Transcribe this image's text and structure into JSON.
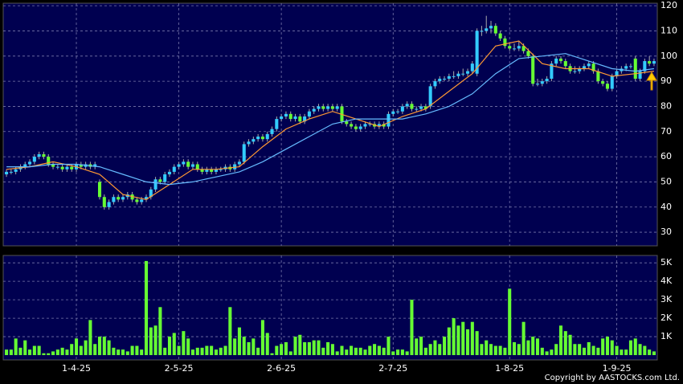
{
  "chart_data": {
    "type": "candlestick",
    "up_color": "#33ccff",
    "down_color": "#66ff33",
    "open": [
      53,
      54,
      54,
      55,
      56,
      57,
      58,
      60,
      61,
      60,
      57,
      56,
      56,
      55,
      56,
      55,
      57,
      56,
      57,
      56,
      50,
      44,
      40,
      42,
      44,
      43,
      44,
      45,
      43,
      42,
      43,
      44,
      47,
      51,
      50,
      53,
      54,
      56,
      57,
      58,
      56,
      57,
      55,
      54,
      55,
      54,
      55,
      55,
      56,
      55,
      57,
      58,
      65,
      66,
      67,
      68,
      67,
      69,
      71,
      75,
      76,
      77,
      75,
      76,
      74,
      76,
      78,
      79,
      80,
      79,
      80,
      79,
      80,
      74,
      73,
      72,
      71,
      72,
      73,
      73,
      72,
      73,
      72,
      77,
      78,
      78,
      80,
      81,
      79,
      79,
      80,
      80,
      88,
      90,
      91,
      91,
      92,
      92,
      93,
      93,
      94,
      93,
      110,
      110,
      111,
      112,
      109,
      107,
      104,
      103,
      103,
      104,
      102,
      100,
      89,
      89,
      90,
      91,
      97,
      99,
      98,
      96,
      94,
      94,
      95,
      96,
      97,
      94,
      90,
      89,
      87,
      92,
      94,
      95,
      96,
      99,
      91,
      94,
      98,
      97
    ],
    "high": [
      55,
      55,
      56,
      57,
      58,
      59,
      61,
      62,
      62,
      61,
      58,
      57,
      57,
      57,
      57,
      58,
      58,
      58,
      58,
      58,
      51,
      45,
      43,
      45,
      45,
      45,
      46,
      46,
      44,
      44,
      45,
      48,
      52,
      52,
      54,
      55,
      57,
      58,
      59,
      59,
      58,
      58,
      56,
      56,
      56,
      56,
      56,
      57,
      57,
      58,
      59,
      66,
      67,
      68,
      69,
      69,
      70,
      72,
      76,
      77,
      78,
      78,
      77,
      77,
      77,
      79,
      80,
      81,
      81,
      81,
      81,
      81,
      81,
      75,
      74,
      73,
      73,
      74,
      74,
      74,
      74,
      74,
      78,
      79,
      79,
      81,
      82,
      82,
      80,
      81,
      81,
      89,
      91,
      92,
      92,
      93,
      94,
      94,
      95,
      95,
      98,
      111,
      112,
      116,
      114,
      113,
      110,
      108,
      105,
      105,
      106,
      105,
      103,
      101,
      91,
      91,
      92,
      98,
      100,
      100,
      99,
      97,
      96,
      96,
      97,
      98,
      98,
      95,
      91,
      90,
      93,
      95,
      96,
      97,
      97,
      100,
      95,
      99,
      100,
      99
    ],
    "low": [
      52,
      53,
      53,
      54,
      55,
      56,
      57,
      59,
      59,
      56,
      55,
      55,
      54,
      54,
      54,
      54,
      55,
      55,
      55,
      55,
      43,
      39,
      39,
      41,
      42,
      42,
      43,
      42,
      41,
      41,
      42,
      43,
      46,
      49,
      49,
      52,
      53,
      55,
      56,
      55,
      55,
      54,
      53,
      53,
      53,
      53,
      54,
      54,
      54,
      54,
      56,
      57,
      64,
      65,
      66,
      66,
      66,
      68,
      70,
      74,
      75,
      74,
      74,
      73,
      73,
      75,
      77,
      78,
      78,
      78,
      78,
      78,
      73,
      72,
      71,
      70,
      70,
      71,
      72,
      71,
      71,
      71,
      71,
      76,
      77,
      77,
      79,
      78,
      78,
      78,
      78,
      79,
      87,
      89,
      90,
      90,
      91,
      91,
      92,
      92,
      93,
      92,
      108,
      109,
      109,
      108,
      106,
      103,
      102,
      102,
      102,
      101,
      99,
      88,
      88,
      88,
      89,
      90,
      96,
      97,
      95,
      93,
      93,
      93,
      94,
      95,
      93,
      89,
      88,
      86,
      86,
      91,
      93,
      94,
      95,
      90,
      90,
      93,
      96,
      96
    ],
    "close": [
      54,
      54,
      55,
      56,
      57,
      58,
      60,
      61,
      60,
      57,
      56,
      56,
      55,
      56,
      55,
      57,
      56,
      57,
      56,
      57,
      44,
      40,
      42,
      44,
      43,
      44,
      45,
      43,
      42,
      43,
      44,
      47,
      51,
      50,
      53,
      54,
      56,
      57,
      58,
      56,
      57,
      55,
      54,
      55,
      54,
      55,
      55,
      56,
      55,
      57,
      58,
      65,
      66,
      67,
      68,
      67,
      69,
      71,
      75,
      76,
      77,
      75,
      76,
      74,
      76,
      78,
      79,
      80,
      79,
      80,
      79,
      80,
      74,
      73,
      72,
      71,
      72,
      73,
      73,
      72,
      73,
      72,
      77,
      78,
      78,
      80,
      81,
      79,
      79,
      80,
      79,
      88,
      90,
      91,
      91,
      92,
      92,
      93,
      93,
      94,
      97,
      110,
      110,
      111,
      112,
      109,
      107,
      104,
      103,
      103,
      104,
      102,
      100,
      89,
      89,
      90,
      91,
      97,
      99,
      98,
      96,
      94,
      94,
      95,
      96,
      97,
      94,
      90,
      89,
      87,
      92,
      94,
      95,
      96,
      96,
      91,
      94,
      98,
      97,
      98
    ],
    "lines": [
      {
        "color": "#ff9933",
        "x": [
          0,
          5,
          10,
          15,
          20,
          25,
          30,
          35,
          40,
          45,
          50,
          55,
          60,
          65,
          70,
          75,
          80,
          85,
          90,
          95,
          100,
          105,
          110,
          115,
          120,
          125,
          130,
          135,
          139
        ],
        "values": [
          55,
          56,
          58,
          56,
          53,
          45,
          43,
          49,
          55,
          55,
          56,
          64,
          71,
          75,
          78,
          75,
          72,
          76,
          79,
          86,
          93,
          104,
          106,
          97,
          95,
          95,
          92,
          93,
          94
        ]
      },
      {
        "color": "#66bbff",
        "x": [
          0,
          5,
          10,
          15,
          20,
          25,
          30,
          35,
          40,
          45,
          50,
          55,
          60,
          65,
          70,
          75,
          80,
          85,
          90,
          95,
          100,
          105,
          110,
          115,
          120,
          125,
          130,
          135,
          139
        ],
        "values": [
          56,
          56,
          57,
          57,
          56,
          53,
          50,
          49,
          50,
          52,
          54,
          58,
          63,
          68,
          73,
          75,
          75,
          75,
          77,
          80,
          85,
          93,
          99,
          100,
          101,
          98,
          95,
          94,
          95
        ]
      }
    ],
    "xlim": [
      -0.7,
      139.7
    ],
    "xticks": [
      {
        "value": 15,
        "label": "1-4-25"
      },
      {
        "value": 37,
        "label": "2-5-25"
      },
      {
        "value": 59,
        "label": "2-6-25"
      },
      {
        "value": 83,
        "label": "2-7-25"
      },
      {
        "value": 108,
        "label": "1-8-25"
      },
      {
        "value": 131,
        "label": "1-9-25"
      }
    ],
    "ylim": [
      24.6,
      121
    ],
    "yticks": [
      30,
      40,
      50,
      60,
      70,
      80,
      90,
      100,
      110,
      120
    ],
    "grid": true,
    "volume": {
      "color": "#66ff33",
      "ylim": [
        -0.26,
        5.4
      ],
      "yticks": [
        {
          "value": 1,
          "label": "1K"
        },
        {
          "value": 2,
          "label": "2K"
        },
        {
          "value": 3,
          "label": "3K"
        },
        {
          "value": 4,
          "label": "4K"
        },
        {
          "value": 5,
          "label": "5K"
        }
      ],
      "values": [
        0.3,
        0.3,
        0.9,
        0.4,
        0.8,
        0.3,
        0.5,
        0.5,
        0.1,
        0.1,
        0.2,
        0.3,
        0.4,
        0.3,
        0.6,
        0.9,
        0.5,
        0.8,
        1.9,
        0.6,
        1.0,
        1.0,
        0.8,
        0.4,
        0.3,
        0.3,
        0.2,
        0.5,
        0.5,
        0.3,
        5.1,
        1.5,
        1.6,
        2.6,
        0.4,
        1.0,
        1.2,
        0.5,
        1.3,
        0.9,
        0.3,
        0.4,
        0.4,
        0.5,
        0.5,
        0.3,
        0.4,
        0.5,
        2.6,
        0.9,
        1.5,
        1.0,
        0.7,
        0.9,
        0.4,
        1.9,
        1.2,
        0.1,
        0.5,
        0.6,
        0.7,
        0.2,
        1.0,
        1.1,
        0.7,
        0.7,
        0.8,
        0.8,
        0.4,
        0.7,
        0.6,
        0.2,
        0.5,
        0.3,
        0.5,
        0.4,
        0.4,
        0.3,
        0.5,
        0.6,
        0.5,
        0.4,
        1.0,
        0.2,
        0.3,
        0.3,
        0.2,
        3.0,
        0.9,
        1.0,
        0.4,
        0.6,
        0.8,
        0.6,
        1.0,
        1.5,
        2.0,
        1.6,
        1.8,
        1.4,
        1.8,
        1.3,
        0.6,
        0.8,
        0.6,
        0.5,
        0.5,
        0.4,
        3.6,
        0.7,
        0.6,
        1.8,
        0.8,
        1.0,
        0.9,
        0.4,
        0.2,
        0.3,
        0.6,
        1.6,
        1.3,
        1.1,
        0.6,
        0.6,
        0.4,
        0.7,
        0.5,
        0.4,
        0.9,
        1.0,
        0.8,
        0.5,
        0.3,
        0.3,
        0.8,
        0.9,
        0.6,
        0.5,
        0.3,
        0.2
      ]
    }
  },
  "footer": "Copyright by AASTOCKS.com Ltd."
}
